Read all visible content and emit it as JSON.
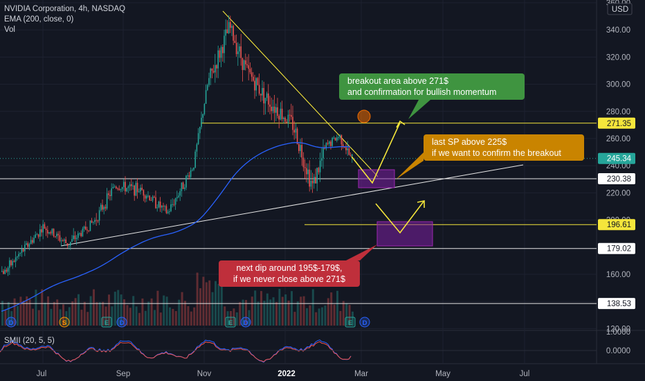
{
  "legend": {
    "symbol": "NVIDIA Corporation, 4h, NASDAQ",
    "ema": "EMA (200, close, 0)",
    "vol": "Vol",
    "smii": "SMII (20, 5, 5)"
  },
  "price_axis": {
    "currency": "USD",
    "ticks": [
      "360.00",
      "340.00",
      "320.00",
      "300.00",
      "280.00",
      "260.00",
      "240.00",
      "220.00",
      "200.00",
      "160.00",
      "140.00",
      "120.00"
    ],
    "labels": [
      {
        "text": "271.35",
        "style": "yellow"
      },
      {
        "text": "245.34",
        "style": "teal"
      },
      {
        "text": "230.38",
        "style": "white"
      },
      {
        "text": "196.61",
        "style": "yellow"
      },
      {
        "text": "179.02",
        "style": "white"
      },
      {
        "text": "138.53",
        "style": "white"
      }
    ]
  },
  "smii_axis": {
    "ticks": [
      "1.0000",
      "0.0000"
    ]
  },
  "time_axis": {
    "ticks": [
      "Jul",
      "Sep",
      "Nov",
      "2022",
      "Mar",
      "May",
      "Jul"
    ]
  },
  "event_markers": [
    "D",
    "S",
    "E",
    "D",
    "E",
    "D",
    "E",
    "D"
  ],
  "annotations": {
    "green": [
      "breakout area above 271$",
      "and confirmation for bullish momentum"
    ],
    "orange": [
      "last SP above 225$",
      "if we want to confirm the breakout"
    ],
    "red": [
      "next dip around 195$-179$,",
      "if we never close above 271$"
    ]
  },
  "colors": {
    "background": "#131722",
    "up": "#26a69a",
    "down": "#ef5350",
    "ema": "#2962ff",
    "yellow": "#f5e63b",
    "purple": "#7b1fa2",
    "green_note": "#3f9440",
    "orange_note": "#c98400",
    "red_note": "#bf2f3b"
  },
  "chart_data": {
    "type": "candlestick",
    "title": "NVIDIA Corporation, 4h, NASDAQ",
    "ylim": [
      120,
      360
    ],
    "grid": true,
    "price_path": [
      {
        "x": "2021-06-01",
        "y": 162
      },
      {
        "x": "2021-07-01",
        "y": 195
      },
      {
        "x": "2021-07-20",
        "y": 182
      },
      {
        "x": "2021-08-10",
        "y": 200
      },
      {
        "x": "2021-08-25",
        "y": 225
      },
      {
        "x": "2021-09-15",
        "y": 222
      },
      {
        "x": "2021-10-05",
        "y": 205
      },
      {
        "x": "2021-10-25",
        "y": 240
      },
      {
        "x": "2021-11-05",
        "y": 300
      },
      {
        "x": "2021-11-22",
        "y": 342
      },
      {
        "x": "2021-12-05",
        "y": 310
      },
      {
        "x": "2021-12-20",
        "y": 290
      },
      {
        "x": "2022-01-10",
        "y": 270
      },
      {
        "x": "2022-01-25",
        "y": 225
      },
      {
        "x": "2022-02-05",
        "y": 255
      },
      {
        "x": "2022-02-15",
        "y": 262
      },
      {
        "x": "2022-02-24",
        "y": 245
      }
    ],
    "horizontal_levels": [
      271.35,
      230.38,
      196.61,
      179.02,
      138.53
    ],
    "last_price": 245.34,
    "indicators": [
      "EMA (200, close, 0)",
      "Vol",
      "SMII (20, 5, 5)"
    ]
  }
}
